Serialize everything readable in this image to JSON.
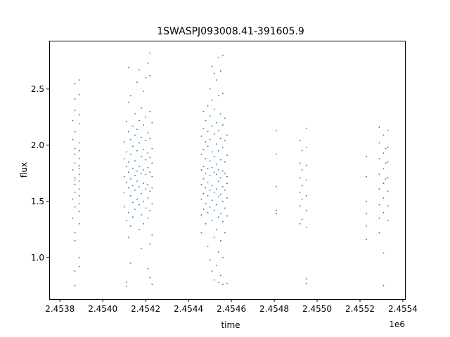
{
  "chart_data": {
    "type": "scatter",
    "title": "1SWASPJ093008.41-391605.9",
    "xlabel": "time",
    "ylabel": "flux",
    "x_offset_label": "1e6",
    "x_scale": 1000000,
    "xlim": [
      2.45375,
      2.45541
    ],
    "ylim": [
      0.63,
      2.93
    ],
    "x_ticks": [
      2.4538,
      2.454,
      2.4542,
      2.4544,
      2.4546,
      2.4548,
      2.455,
      2.4552,
      2.4554
    ],
    "x_tick_labels": [
      "2.4538",
      "2.4540",
      "2.4542",
      "2.4544",
      "2.4546",
      "2.4548",
      "2.4550",
      "2.4552",
      "2.4554"
    ],
    "y_ticks": [
      1.0,
      1.5,
      2.0,
      2.5
    ],
    "y_tick_labels": [
      "1.0",
      "1.5",
      "2.0",
      "2.5"
    ],
    "grid": false,
    "marker_color": "#1f77b4",
    "series": [
      {
        "values": [
          [
            2.45386,
            1.78
          ],
          [
            2.45386,
            1.52
          ],
          [
            2.45386,
            2.05
          ],
          [
            2.45386,
            1.35
          ],
          [
            2.45386,
            2.22
          ],
          [
            2.45387,
            1.65
          ],
          [
            2.45387,
            1.92
          ],
          [
            2.45387,
            1.71
          ],
          [
            2.45387,
            2.41
          ],
          [
            2.45387,
            1.22
          ],
          [
            2.45387,
            0.88
          ],
          [
            2.45387,
            1.84
          ],
          [
            2.45387,
            1.58
          ],
          [
            2.45387,
            2.12
          ],
          [
            2.45387,
            1.45
          ],
          [
            2.45387,
            2.31
          ],
          [
            2.45387,
            1.69
          ],
          [
            2.45387,
            1.97
          ],
          [
            2.45387,
            1.15
          ],
          [
            2.45387,
            2.55
          ],
          [
            2.45387,
            0.75
          ],
          [
            2.45389,
            1.82
          ],
          [
            2.45389,
            1.61
          ],
          [
            2.45389,
            2.02
          ],
          [
            2.45389,
            1.41
          ],
          [
            2.45389,
            2.19
          ],
          [
            2.45389,
            1.74
          ],
          [
            2.45389,
            1.88
          ],
          [
            2.45389,
            1.55
          ],
          [
            2.45389,
            2.27
          ],
          [
            2.45389,
            1.3
          ],
          [
            2.45389,
            1.0
          ],
          [
            2.45389,
            2.45
          ],
          [
            2.45389,
            1.95
          ],
          [
            2.45389,
            1.68
          ],
          [
            2.45389,
            2.58
          ],
          [
            2.45389,
            0.92
          ],
          [
            2.45389,
            1.79
          ],
          [
            2.45389,
            1.48
          ],
          [
            2.4541,
            1.72
          ],
          [
            2.4541,
            1.88
          ],
          [
            2.4541,
            1.58
          ],
          [
            2.4541,
            2.03
          ],
          [
            2.4541,
            1.45
          ],
          [
            2.45411,
            1.81
          ],
          [
            2.45411,
            1.67
          ],
          [
            2.45411,
            1.94
          ],
          [
            2.45411,
            2.21
          ],
          [
            2.45411,
            1.33
          ],
          [
            2.45411,
            0.78
          ],
          [
            2.45411,
            0.74
          ],
          [
            2.45412,
            1.76
          ],
          [
            2.45412,
            1.62
          ],
          [
            2.45412,
            2.12
          ],
          [
            2.45412,
            1.4
          ],
          [
            2.45412,
            1.85
          ],
          [
            2.45412,
            2.69
          ],
          [
            2.45412,
            1.18
          ],
          [
            2.45412,
            2.38
          ],
          [
            2.45413,
            1.7
          ],
          [
            2.45413,
            1.92
          ],
          [
            2.45413,
            1.55
          ],
          [
            2.45413,
            2.05
          ],
          [
            2.45413,
            1.28
          ],
          [
            2.45413,
            2.44
          ],
          [
            2.45413,
            0.95
          ],
          [
            2.45414,
            1.79
          ],
          [
            2.45414,
            1.64
          ],
          [
            2.45414,
            1.99
          ],
          [
            2.45414,
            1.49
          ],
          [
            2.45414,
            2.17
          ],
          [
            2.45414,
            1.36
          ],
          [
            2.45415,
            1.73
          ],
          [
            2.45415,
            1.86
          ],
          [
            2.45415,
            1.6
          ],
          [
            2.45415,
            2.09
          ],
          [
            2.45415,
            1.43
          ],
          [
            2.45415,
            2.28
          ],
          [
            2.45416,
            1.77
          ],
          [
            2.45416,
            1.68
          ],
          [
            2.45416,
            1.95
          ],
          [
            2.45416,
            1.52
          ],
          [
            2.45416,
            2.14
          ],
          [
            2.45416,
            2.56
          ],
          [
            2.45417,
            1.81
          ],
          [
            2.45417,
            1.63
          ],
          [
            2.45417,
            2.02
          ],
          [
            2.45417,
            1.47
          ],
          [
            2.45417,
            2.22
          ],
          [
            2.45417,
            1.25
          ],
          [
            2.45417,
            2.67
          ],
          [
            2.45418,
            1.75
          ],
          [
            2.45418,
            1.9
          ],
          [
            2.45418,
            1.57
          ],
          [
            2.45418,
            2.07
          ],
          [
            2.45418,
            1.38
          ],
          [
            2.45418,
            2.33
          ],
          [
            2.45418,
            1.08
          ],
          [
            2.45419,
            1.78
          ],
          [
            2.45419,
            1.66
          ],
          [
            2.45419,
            1.96
          ],
          [
            2.45419,
            1.5
          ],
          [
            2.45419,
            2.18
          ],
          [
            2.45419,
            1.3
          ],
          [
            2.45419,
            2.48
          ],
          [
            2.4542,
            1.74
          ],
          [
            2.4542,
            1.87
          ],
          [
            2.4542,
            1.61
          ],
          [
            2.4542,
            2.04
          ],
          [
            2.4542,
            1.44
          ],
          [
            2.4542,
            2.25
          ],
          [
            2.4542,
            2.6
          ],
          [
            2.45421,
            1.8
          ],
          [
            2.45421,
            1.65
          ],
          [
            2.45421,
            1.93
          ],
          [
            2.45421,
            1.53
          ],
          [
            2.45421,
            2.11
          ],
          [
            2.45421,
            1.35
          ],
          [
            2.45421,
            2.73
          ],
          [
            2.45421,
            0.9
          ],
          [
            2.45422,
            1.76
          ],
          [
            2.45422,
            1.89
          ],
          [
            2.45422,
            1.59
          ],
          [
            2.45422,
            2.06
          ],
          [
            2.45422,
            1.42
          ],
          [
            2.45422,
            2.3
          ],
          [
            2.45422,
            1.12
          ],
          [
            2.45422,
            2.82
          ],
          [
            2.45422,
            0.82
          ],
          [
            2.45422,
            2.62
          ],
          [
            2.45423,
            1.72
          ],
          [
            2.45423,
            1.84
          ],
          [
            2.45423,
            1.62
          ],
          [
            2.45423,
            1.97
          ],
          [
            2.45423,
            1.48
          ],
          [
            2.45423,
            2.2
          ],
          [
            2.45423,
            1.2
          ],
          [
            2.45423,
            0.76
          ],
          [
            2.45446,
            1.78
          ],
          [
            2.45446,
            1.65
          ],
          [
            2.45446,
            1.92
          ],
          [
            2.45446,
            1.52
          ],
          [
            2.45446,
            2.08
          ],
          [
            2.45446,
            1.38
          ],
          [
            2.45446,
            1.22
          ],
          [
            2.45447,
            1.81
          ],
          [
            2.45447,
            1.7
          ],
          [
            2.45447,
            1.96
          ],
          [
            2.45447,
            1.57
          ],
          [
            2.45447,
            2.15
          ],
          [
            2.45447,
            1.43
          ],
          [
            2.45447,
            2.3
          ],
          [
            2.45448,
            1.75
          ],
          [
            2.45448,
            1.88
          ],
          [
            2.45448,
            1.62
          ],
          [
            2.45448,
            2.03
          ],
          [
            2.45448,
            1.48
          ],
          [
            2.45448,
            2.22
          ],
          [
            2.45448,
            1.3
          ],
          [
            2.45449,
            1.79
          ],
          [
            2.45449,
            1.67
          ],
          [
            2.45449,
            1.99
          ],
          [
            2.45449,
            1.55
          ],
          [
            2.45449,
            2.12
          ],
          [
            2.45449,
            1.4
          ],
          [
            2.45449,
            2.35
          ],
          [
            2.45449,
            1.1
          ],
          [
            2.4545,
            1.73
          ],
          [
            2.4545,
            1.86
          ],
          [
            2.4545,
            1.6
          ],
          [
            2.4545,
            2.05
          ],
          [
            2.4545,
            1.45
          ],
          [
            2.4545,
            2.26
          ],
          [
            2.4545,
            2.5
          ],
          [
            2.4545,
            0.98
          ],
          [
            2.45451,
            1.8
          ],
          [
            2.45451,
            1.64
          ],
          [
            2.45451,
            1.94
          ],
          [
            2.45451,
            1.51
          ],
          [
            2.45451,
            2.17
          ],
          [
            2.45451,
            1.33
          ],
          [
            2.45451,
            2.4
          ],
          [
            2.45451,
            2.7
          ],
          [
            2.45451,
            0.88
          ],
          [
            2.45452,
            1.76
          ],
          [
            2.45452,
            1.9
          ],
          [
            2.45452,
            1.58
          ],
          [
            2.45452,
            2.1
          ],
          [
            2.45452,
            1.42
          ],
          [
            2.45452,
            2.32
          ],
          [
            2.45452,
            1.18
          ],
          [
            2.45452,
            2.64
          ],
          [
            2.45452,
            0.8
          ],
          [
            2.45453,
            1.74
          ],
          [
            2.45453,
            1.83
          ],
          [
            2.45453,
            1.61
          ],
          [
            2.45453,
            2.01
          ],
          [
            2.45453,
            1.47
          ],
          [
            2.45453,
            2.2
          ],
          [
            2.45453,
            1.25
          ],
          [
            2.45453,
            2.58
          ],
          [
            2.45453,
            0.93
          ],
          [
            2.45454,
            1.78
          ],
          [
            2.45454,
            1.68
          ],
          [
            2.45454,
            1.95
          ],
          [
            2.45454,
            1.54
          ],
          [
            2.45454,
            2.13
          ],
          [
            2.45454,
            1.36
          ],
          [
            2.45454,
            2.44
          ],
          [
            2.45454,
            1.05
          ],
          [
            2.45454,
            2.78
          ],
          [
            2.45454,
            0.78
          ],
          [
            2.45455,
            1.71
          ],
          [
            2.45455,
            1.87
          ],
          [
            2.45455,
            1.56
          ],
          [
            2.45455,
            2.06
          ],
          [
            2.45455,
            1.39
          ],
          [
            2.45455,
            2.28
          ],
          [
            2.45455,
            1.15
          ],
          [
            2.45455,
            2.66
          ],
          [
            2.45455,
            0.84
          ],
          [
            2.45456,
            1.77
          ],
          [
            2.45456,
            1.63
          ],
          [
            2.45456,
            1.98
          ],
          [
            2.45456,
            1.5
          ],
          [
            2.45456,
            2.18
          ],
          [
            2.45456,
            1.32
          ],
          [
            2.45456,
            2.46
          ],
          [
            2.45456,
            1.0
          ],
          [
            2.45456,
            2.8
          ],
          [
            2.45456,
            0.76
          ],
          [
            2.45457,
            1.75
          ],
          [
            2.45457,
            1.85
          ],
          [
            2.45457,
            1.6
          ],
          [
            2.45457,
            2.04
          ],
          [
            2.45457,
            1.44
          ],
          [
            2.45457,
            2.24
          ],
          [
            2.45457,
            1.22
          ],
          [
            2.45458,
            1.72
          ],
          [
            2.45458,
            1.66
          ],
          [
            2.45458,
            1.91
          ],
          [
            2.45458,
            1.53
          ],
          [
            2.45458,
            2.09
          ],
          [
            2.45458,
            1.37
          ],
          [
            2.45458,
            0.77
          ],
          [
            2.45481,
            2.13
          ],
          [
            2.45481,
            1.92
          ],
          [
            2.45481,
            1.63
          ],
          [
            2.45481,
            1.42
          ],
          [
            2.45481,
            1.39
          ],
          [
            2.45492,
            2.04
          ],
          [
            2.45492,
            1.84
          ],
          [
            2.45492,
            1.71
          ],
          [
            2.45492,
            1.58
          ],
          [
            2.45492,
            1.46
          ],
          [
            2.45492,
            1.3
          ],
          [
            2.45493,
            1.95
          ],
          [
            2.45493,
            1.78
          ],
          [
            2.45493,
            1.64
          ],
          [
            2.45493,
            1.52
          ],
          [
            2.45493,
            1.34
          ],
          [
            2.45495,
            2.15
          ],
          [
            2.45495,
            1.98
          ],
          [
            2.45495,
            1.82
          ],
          [
            2.45495,
            1.69
          ],
          [
            2.45495,
            1.55
          ],
          [
            2.45495,
            1.42
          ],
          [
            2.45495,
            1.27
          ],
          [
            2.45495,
            0.81
          ],
          [
            2.45495,
            0.77
          ],
          [
            2.45523,
            1.9
          ],
          [
            2.45523,
            1.72
          ],
          [
            2.45523,
            1.5
          ],
          [
            2.45523,
            1.39
          ],
          [
            2.45523,
            1.28
          ],
          [
            2.45523,
            1.16
          ],
          [
            2.45529,
            2.16
          ],
          [
            2.45529,
            2.02
          ],
          [
            2.45529,
            1.88
          ],
          [
            2.45529,
            1.74
          ],
          [
            2.45529,
            1.61
          ],
          [
            2.45529,
            1.47
          ],
          [
            2.45529,
            1.35
          ],
          [
            2.45529,
            1.22
          ],
          [
            2.45531,
            2.09
          ],
          [
            2.45531,
            1.93
          ],
          [
            2.45531,
            1.79
          ],
          [
            2.45531,
            1.66
          ],
          [
            2.45531,
            1.53
          ],
          [
            2.45531,
            1.4
          ],
          [
            2.45531,
            1.04
          ],
          [
            2.45531,
            0.75
          ],
          [
            2.45532,
            1.97
          ],
          [
            2.45532,
            1.84
          ],
          [
            2.45532,
            1.7
          ],
          [
            2.45533,
            2.13
          ],
          [
            2.45533,
            1.98
          ],
          [
            2.45533,
            1.85
          ],
          [
            2.45533,
            1.71
          ],
          [
            2.45533,
            1.59
          ],
          [
            2.45533,
            1.46
          ],
          [
            2.45533,
            1.33
          ]
        ]
      }
    ]
  }
}
